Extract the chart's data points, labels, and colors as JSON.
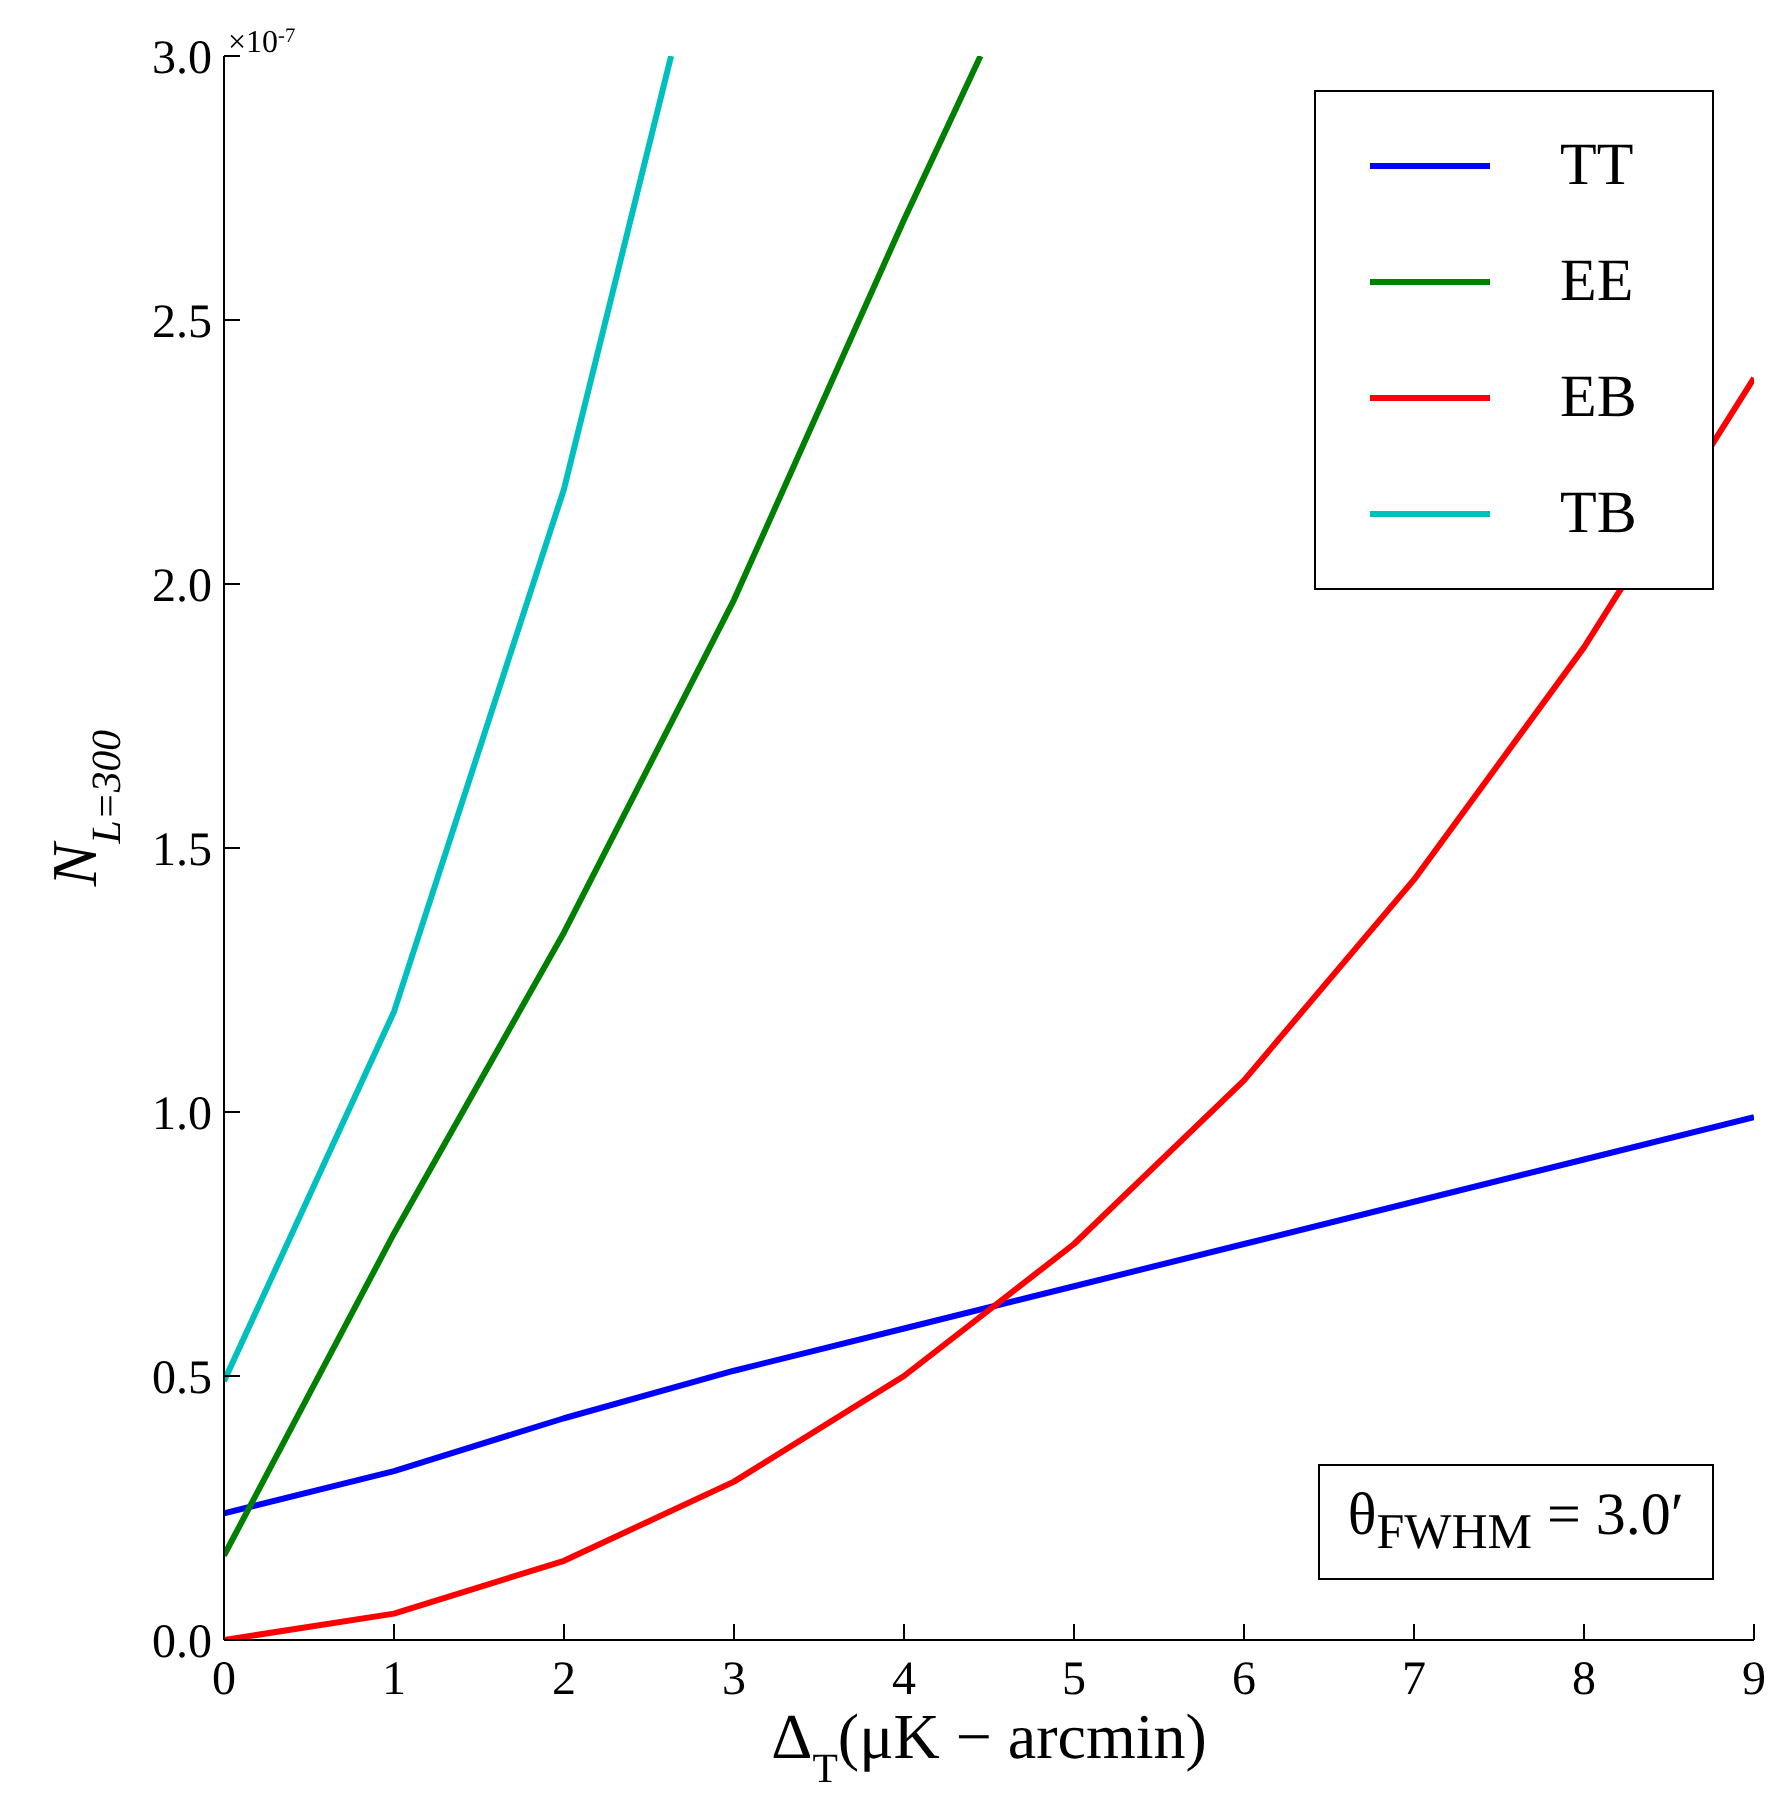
{
  "chart_data": {
    "type": "line",
    "xlabel": "Δ$_{T}$(μK − arcmin)",
    "ylabel": "N$_{L=300}$",
    "xlim": [
      0,
      9
    ],
    "xticks": [
      0,
      1,
      2,
      3,
      4,
      5,
      6,
      7,
      8,
      9
    ],
    "ylim": [
      0,
      3.0
    ],
    "yticks": [
      {
        "value": 0,
        "label": "0.0"
      },
      {
        "value": 0.5,
        "label": "0.5"
      },
      {
        "value": 1,
        "label": "1.0"
      },
      {
        "value": 1.5,
        "label": "1.5"
      },
      {
        "value": 2,
        "label": "2.0"
      },
      {
        "value": 2.5,
        "label": "2.5"
      },
      {
        "value": 3,
        "label": "3.0"
      }
    ],
    "series": [
      {
        "name": "TT",
        "color": "#0000ff",
        "x": [
          0,
          1,
          2,
          3,
          4,
          5,
          6,
          7,
          8,
          9
        ],
        "values": [
          0.24,
          0.32,
          0.42,
          0.51,
          0.59,
          0.67,
          0.75,
          0.83,
          0.91,
          0.99
        ]
      },
      {
        "name": "EE",
        "color": "#008000",
        "x": [
          0,
          1,
          2,
          3,
          4,
          4.45
        ],
        "values": [
          0.16,
          0.77,
          1.34,
          1.97,
          2.69,
          3.0
        ]
      },
      {
        "name": "EB",
        "color": "#ff0000",
        "x": [
          0,
          1,
          2,
          3,
          4,
          5,
          6,
          7,
          8,
          9
        ],
        "values": [
          0,
          0.05,
          0.15,
          0.3,
          0.5,
          0.75,
          1.06,
          1.44,
          1.88,
          2.39
        ]
      },
      {
        "name": "TB",
        "color": "#00bfbf",
        "x": [
          0,
          1,
          2,
          2.63
        ],
        "values": [
          0.49,
          1.19,
          2.18,
          3.0
        ]
      }
    ],
    "annotations": [
      "×10$^{-7}$",
      "θ$_{FWHM}$ = 3.0′"
    ],
    "legend": "top right",
    "grid": false,
    "marker": "none",
    "line_style": "solid"
  }
}
